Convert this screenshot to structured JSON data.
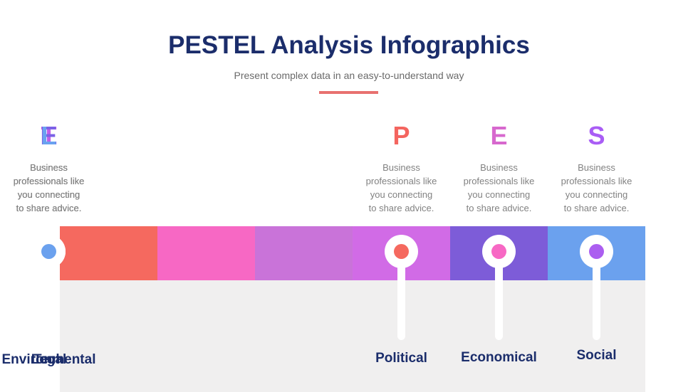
{
  "slide": {
    "title": "PESTEL Analysis Infographics",
    "subtitle": "Present complex data in an easy-to-understand way"
  },
  "colors": {
    "title_navy": "#1b2d6b",
    "label_navy": "#1b2d6b",
    "subtitle_gray": "#6a6a6a",
    "description_gray": "#828282",
    "divider_accent": "#e8716f",
    "panel_gray": "#f0efef",
    "background": "#ffffff",
    "marker_ring_white": "#ffffff"
  },
  "columns": [
    {
      "letter": "P",
      "letter_color": "#f4655f",
      "band_color": "#f5695f",
      "dot_color": "#f5695f",
      "label": "Political",
      "description": "Business professionals like you connecting to share advice.",
      "description_lines": [
        "Business",
        "professionals like",
        "you connecting",
        "to share advice."
      ]
    },
    {
      "letter": "E",
      "letter_color": "#d768ce",
      "band_color": "#f768c4",
      "dot_color": "#f768c4",
      "label": "Economical",
      "description": "Business professionals like you connecting to share advice.",
      "description_lines": [
        "Business",
        "professionals like",
        "you connecting",
        "to share advice."
      ]
    },
    {
      "letter": "S",
      "letter_color": "#a95df5",
      "band_color": "#c973d9",
      "dot_color": "#ab5ef0",
      "label": "Social",
      "description": "Business professionals like you connecting to share advice.",
      "description_lines": [
        "Business",
        "professionals like",
        "you connecting",
        "to share advice."
      ]
    },
    {
      "letter": "T",
      "letter_color": "#c25ee8",
      "band_color": "#d16be6",
      "dot_color": "#d16be6",
      "label": "Tech",
      "description": "Business professionals like you connecting to share advice.",
      "description_lines": [
        "Business",
        "professionals like",
        "you connecting",
        "to share advice."
      ]
    },
    {
      "letter": "E",
      "letter_color": "#7b62e6",
      "band_color": "#7d5cd8",
      "dot_color": "#7d5cd8",
      "label": "Environmental",
      "description": "Business professionals like you connecting to share advice.",
      "description_lines": [
        "Business",
        "professionals like",
        "you connecting",
        "to share advice."
      ]
    },
    {
      "letter": "L",
      "letter_color": "#6aa2f0",
      "band_color": "#6ba1ee",
      "dot_color": "#6ba1ee",
      "label": "Legal",
      "description": "Business professionals like you connecting to share advice.",
      "description_lines": [
        "Business",
        "professionals like",
        "you connecting",
        "to share advice."
      ]
    }
  ]
}
